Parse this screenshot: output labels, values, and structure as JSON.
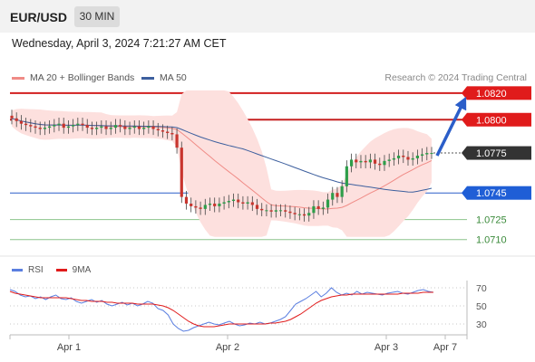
{
  "header": {
    "pair": "EUR/USD",
    "timeframe": "30 MIN",
    "datetime": "Wednesday, April 3, 2024 7:21:27 AM CET"
  },
  "legend": {
    "ma20": {
      "label": "MA 20 + Bollinger Bands",
      "color": "#f08b86"
    },
    "ma50": {
      "label": "MA 50",
      "color": "#3d5f9e"
    },
    "credit": "Research © 2024 Trading Central"
  },
  "chart_data": [
    {
      "type": "candlestick",
      "y_range": [
        1.0703,
        1.0826
      ],
      "current_price": 1.0775,
      "candles_close_approx": [
        1.0801,
        1.0799,
        1.0797,
        1.0796,
        1.0795,
        1.0794,
        1.0793,
        1.0794,
        1.0795,
        1.0796,
        1.0797,
        1.0794,
        1.0795,
        1.0796,
        1.0797,
        1.0796,
        1.0794,
        1.0793,
        1.0794,
        1.0795,
        1.0793,
        1.0794,
        1.0796,
        1.0795,
        1.0793,
        1.0794,
        1.0795,
        1.0793,
        1.0794,
        1.0795,
        1.0793,
        1.0792,
        1.0791,
        1.079,
        1.0789,
        1.0779,
        1.0742,
        1.0737,
        1.0735,
        1.0734,
        1.0733,
        1.0736,
        1.0737,
        1.0735,
        1.0737,
        1.0738,
        1.0739,
        1.074,
        1.0738,
        1.0737,
        1.0738,
        1.0736,
        1.0733,
        1.0732,
        1.0732,
        1.0731,
        1.0732,
        1.0732,
        1.0731,
        1.073,
        1.0729,
        1.0729,
        1.0728,
        1.073,
        1.0735,
        1.0733,
        1.0734,
        1.074,
        1.0745,
        1.0742,
        1.075,
        1.0765,
        1.077,
        1.0768,
        1.0769,
        1.0768,
        1.077,
        1.0767,
        1.0766,
        1.0769,
        1.077,
        1.0771,
        1.0773,
        1.0772,
        1.077,
        1.0771,
        1.0773,
        1.0774,
        1.0775,
        1.0775
      ],
      "levels": [
        {
          "label": "1.0820",
          "value": 1.082,
          "role": "target",
          "line_color": "#d21f1f",
          "tag_color": "#e01b1b"
        },
        {
          "label": "1.0800",
          "value": 1.08,
          "role": "resistance",
          "line_color": "#c62020",
          "tag_color": "#e01b1b"
        },
        {
          "label": "1.0775",
          "value": 1.0775,
          "role": "current",
          "line_color": "#444444",
          "tag_color": "#333333"
        },
        {
          "label": "1.0745",
          "value": 1.0745,
          "role": "pivot",
          "line_color": "#2b5ec9",
          "tag_color": "#1f5ed6"
        },
        {
          "label": "1.0725",
          "value": 1.0725,
          "role": "support",
          "line_color": "#8bc48b",
          "tag_color": "none"
        },
        {
          "label": "1.0710",
          "value": 1.071,
          "role": "support",
          "line_color": "#8bc48b",
          "tag_color": "none"
        }
      ],
      "x_ticks": [
        "Apr 1",
        "Apr 2",
        "Apr 3",
        "Apr 7"
      ],
      "arrow": "upward toward 1.0820"
    },
    {
      "type": "line",
      "title": "RSI",
      "legend": [
        {
          "label": "RSI",
          "color": "#5b7fe0"
        },
        {
          "label": "9MA",
          "color": "#e01b1b"
        }
      ],
      "y_ticks": [
        "70",
        "50",
        "30"
      ],
      "y_range": [
        20,
        80
      ],
      "rsi_values": [
        68,
        66,
        62,
        60,
        61,
        58,
        60,
        57,
        60,
        62,
        58,
        57,
        59,
        55,
        53,
        55,
        57,
        54,
        56,
        52,
        50,
        52,
        54,
        51,
        53,
        50,
        52,
        55,
        53,
        47,
        45,
        40,
        30,
        25,
        22,
        23,
        26,
        28,
        30,
        32,
        30,
        29,
        31,
        33,
        30,
        28,
        29,
        31,
        30,
        32,
        30,
        31,
        33,
        35,
        38,
        45,
        52,
        55,
        58,
        62,
        66,
        60,
        64,
        70,
        65,
        62,
        64,
        62,
        66,
        63,
        65,
        64,
        63,
        62,
        64,
        65,
        66,
        64,
        63,
        65,
        67,
        68,
        66,
        65
      ],
      "ma9_values": [
        66,
        64,
        63,
        62,
        61,
        60,
        59,
        59,
        59,
        59,
        59,
        59,
        58,
        57,
        56,
        56,
        55,
        55,
        55,
        54,
        54,
        53,
        53,
        53,
        53,
        52,
        52,
        52,
        52,
        51,
        50,
        48,
        45,
        41,
        37,
        33,
        30,
        28,
        27,
        27,
        27,
        28,
        29,
        30,
        30,
        30,
        30,
        30,
        30,
        30,
        30,
        31,
        31,
        32,
        33,
        35,
        38,
        41,
        45,
        49,
        53,
        56,
        58,
        60,
        61,
        62,
        62,
        63,
        63,
        63,
        63,
        63,
        63,
        63,
        63,
        63,
        63,
        64,
        64,
        64,
        64,
        65,
        65,
        65
      ]
    }
  ]
}
